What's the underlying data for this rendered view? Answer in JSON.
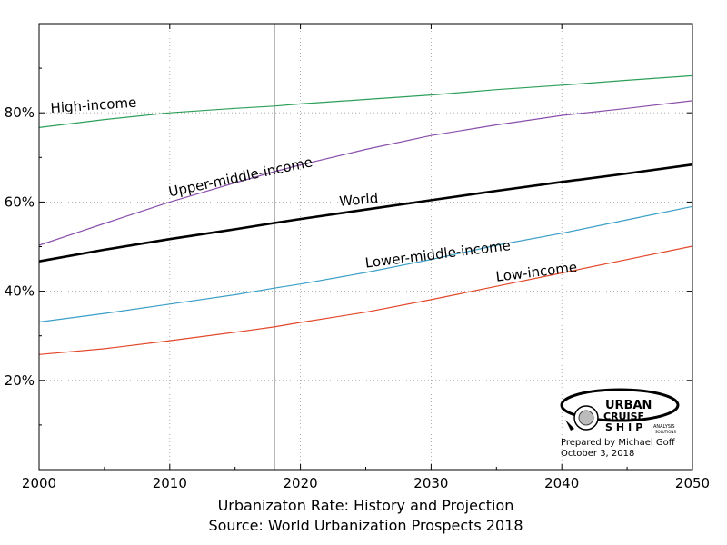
{
  "chart_data": {
    "type": "line",
    "title": "Urbanizaton Rate: History and Projection",
    "subtitle": "Source: World Urbanization Prospects 2018",
    "xlim": [
      2000,
      2050
    ],
    "ylim": [
      0,
      100
    ],
    "x_ticks": [
      2000,
      2010,
      2020,
      2030,
      2040,
      2050
    ],
    "y_ticks": [
      20,
      40,
      60,
      80
    ],
    "y_tick_format": "%",
    "grid": true,
    "vertical_marker_x": 2018,
    "x": [
      2000,
      2005,
      2010,
      2015,
      2018,
      2020,
      2025,
      2030,
      2035,
      2040,
      2045,
      2050
    ],
    "series": [
      {
        "name": "High-income",
        "color": "#2ca05a",
        "width": 1.2,
        "values": [
          76.7,
          78.5,
          80.0,
          81.0,
          81.5,
          82.0,
          83.0,
          84.0,
          85.2,
          86.2,
          87.3,
          88.3
        ]
      },
      {
        "name": "Upper-middle-income",
        "color": "#8a4fab",
        "width": 1.2,
        "values": [
          50.3,
          55.2,
          60.0,
          64.3,
          66.8,
          68.3,
          71.8,
          74.9,
          77.3,
          79.4,
          81.0,
          82.7
        ]
      },
      {
        "name": "World",
        "color": "#000000",
        "width": 2.6,
        "values": [
          46.7,
          49.3,
          51.7,
          53.9,
          55.3,
          56.2,
          58.3,
          60.4,
          62.5,
          64.5,
          66.4,
          68.4
        ]
      },
      {
        "name": "Lower-middle-income",
        "color": "#3a9fc7",
        "width": 1.2,
        "values": [
          33.1,
          35.0,
          37.1,
          39.2,
          40.7,
          41.6,
          44.2,
          47.1,
          50.3,
          53.0,
          56.0,
          59.0
        ]
      },
      {
        "name": "Low-income",
        "color": "#e2482b",
        "width": 1.2,
        "values": [
          25.8,
          27.1,
          28.9,
          30.8,
          32.0,
          33.0,
          35.3,
          38.1,
          41.1,
          44.1,
          47.1,
          50.1
        ]
      }
    ],
    "series_labels": [
      {
        "name": "High-income",
        "x": 2000.9,
        "y": 80.0,
        "rotate": -4
      },
      {
        "name": "Upper-middle-income",
        "x": 2010.0,
        "y": 61.2,
        "rotate": -12
      },
      {
        "name": "World",
        "x": 2023.0,
        "y": 59.1,
        "rotate": -5
      },
      {
        "name": "Lower-middle-income",
        "x": 2025.0,
        "y": 45.3,
        "rotate": -7
      },
      {
        "name": "Low-income",
        "x": 2035.0,
        "y": 42.2,
        "rotate": -7
      }
    ]
  },
  "logo": {
    "line1": "URBAN",
    "line2": "CRUISE",
    "line3": "SHIP",
    "tag1": "ANALYSIS",
    "tag2": "SOLUTIONS"
  },
  "credit": {
    "prepared_by": "Prepared by Michael Goff",
    "date": "October 3, 2018"
  }
}
